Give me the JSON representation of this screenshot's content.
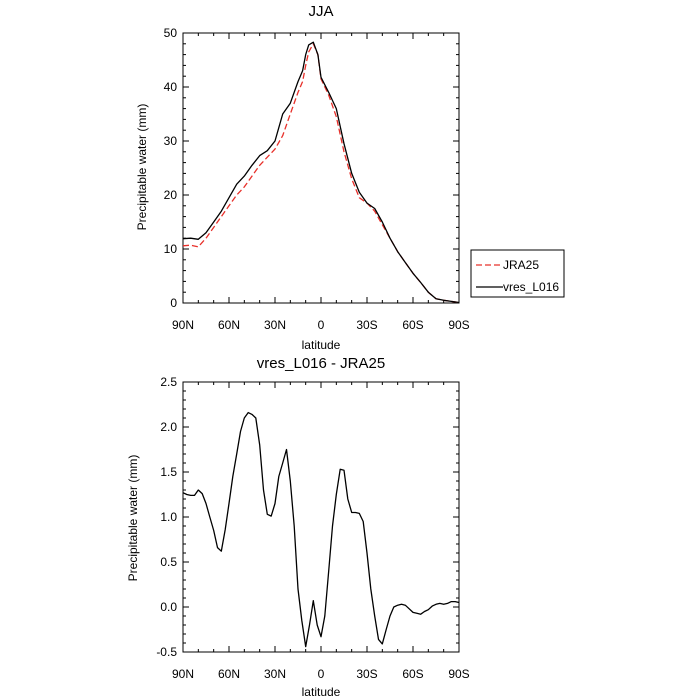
{
  "chart_data": [
    {
      "type": "line",
      "title": "JJA",
      "xlabel": "latitude",
      "ylabel": "Precipitable water (mm)",
      "xlim": [
        90,
        -90
      ],
      "ylim": [
        0,
        50
      ],
      "xticks": [
        {
          "value": 90,
          "label": "90N"
        },
        {
          "value": 60,
          "label": "60N"
        },
        {
          "value": 30,
          "label": "30N"
        },
        {
          "value": 0,
          "label": "0"
        },
        {
          "value": -30,
          "label": "30S"
        },
        {
          "value": -60,
          "label": "60S"
        },
        {
          "value": -90,
          "label": "90S"
        }
      ],
      "yticks": [
        0,
        10,
        20,
        30,
        40,
        50
      ],
      "legend": "right",
      "series": [
        {
          "name": "JRA25",
          "color": "#e8302a",
          "dash": "dashed",
          "x": [
            90,
            85,
            80,
            75,
            70,
            65,
            60,
            55,
            50,
            45,
            40,
            35,
            30,
            25,
            20,
            15,
            12,
            10,
            8,
            5,
            2,
            0,
            -5,
            -10,
            -15,
            -20,
            -25,
            -30,
            -35,
            -40,
            -45,
            -50,
            -55,
            -60,
            -65,
            -70,
            -75,
            -80,
            -85,
            -90
          ],
          "y": [
            10.6,
            10.7,
            10.4,
            12.0,
            14.0,
            16.0,
            18.0,
            20.0,
            21.5,
            23.5,
            25.5,
            27.0,
            28.5,
            31.0,
            35.0,
            39.0,
            41.0,
            44.0,
            46.5,
            48.0,
            46.0,
            41.5,
            38.5,
            34.5,
            28.0,
            23.0,
            19.5,
            18.5,
            17.0,
            14.5,
            12.0,
            9.5,
            7.5,
            5.5,
            3.8,
            2.0,
            0.8,
            0.5,
            0.3,
            0.1
          ]
        },
        {
          "name": "vres_L016",
          "color": "#000000",
          "dash": "solid",
          "x": [
            90,
            85,
            80,
            75,
            70,
            65,
            60,
            55,
            50,
            45,
            40,
            35,
            30,
            25,
            20,
            15,
            12,
            10,
            8,
            5,
            2,
            0,
            -5,
            -10,
            -15,
            -20,
            -25,
            -30,
            -35,
            -40,
            -45,
            -50,
            -55,
            -60,
            -65,
            -70,
            -75,
            -80,
            -85,
            -90
          ],
          "y": [
            11.9,
            12.0,
            11.8,
            13.0,
            15.0,
            17.0,
            19.5,
            22.0,
            23.5,
            25.5,
            27.3,
            28.2,
            30.0,
            35.0,
            37.0,
            41.0,
            43.0,
            46.0,
            47.8,
            48.3,
            46.0,
            41.8,
            39.0,
            36.0,
            29.5,
            24.0,
            20.5,
            18.5,
            17.5,
            15.0,
            12.0,
            9.5,
            7.5,
            5.5,
            3.8,
            2.0,
            0.8,
            0.5,
            0.3,
            0.1
          ]
        }
      ]
    },
    {
      "type": "line",
      "title": "vres_L016 - JRA25",
      "xlabel": "latitude",
      "ylabel": "Precipitable water (mm)",
      "xlim": [
        90,
        -90
      ],
      "ylim": [
        -0.5,
        2.5
      ],
      "xticks": [
        {
          "value": 90,
          "label": "90N"
        },
        {
          "value": 60,
          "label": "60N"
        },
        {
          "value": 30,
          "label": "30N"
        },
        {
          "value": 0,
          "label": "0"
        },
        {
          "value": -30,
          "label": "30S"
        },
        {
          "value": -60,
          "label": "60S"
        },
        {
          "value": -90,
          "label": "90S"
        }
      ],
      "yticks": [
        -0.5,
        0.0,
        0.5,
        1.0,
        1.5,
        2.0,
        2.5
      ],
      "yticklabels": [
        "-0.5",
        "0.0",
        "0.5",
        "1.0",
        "1.5",
        "2.0",
        "2.5"
      ],
      "series": [
        {
          "name": "",
          "color": "#000000",
          "dash": "solid",
          "x": [
            90,
            87.5,
            85,
            82.5,
            80,
            77.5,
            75,
            72.5,
            70,
            67.5,
            65,
            62.5,
            60,
            57.5,
            55,
            52.5,
            50,
            47.5,
            45,
            42.5,
            40,
            37.5,
            35,
            32.5,
            30,
            27.5,
            25,
            22.5,
            20,
            17.5,
            15,
            12.5,
            10,
            7.5,
            5,
            2.5,
            0,
            -2.5,
            -5,
            -7.5,
            -10,
            -12.5,
            -15,
            -17.5,
            -20,
            -22.5,
            -25,
            -27.5,
            -30,
            -32.5,
            -35,
            -37.5,
            -40,
            -42.5,
            -45,
            -47.5,
            -50,
            -52.5,
            -55,
            -57.5,
            -60,
            -62.5,
            -65,
            -67.5,
            -70,
            -72.5,
            -75,
            -77.5,
            -80,
            -82.5,
            -85,
            -87.5,
            -90
          ],
          "y": [
            1.27,
            1.25,
            1.24,
            1.24,
            1.3,
            1.26,
            1.15,
            1.0,
            0.85,
            0.66,
            0.62,
            0.86,
            1.15,
            1.45,
            1.7,
            1.95,
            2.1,
            2.16,
            2.14,
            2.1,
            1.8,
            1.3,
            1.03,
            1.01,
            1.15,
            1.45,
            1.6,
            1.75,
            1.4,
            0.9,
            0.2,
            -0.15,
            -0.44,
            -0.2,
            0.07,
            -0.2,
            -0.33,
            -0.1,
            0.4,
            0.9,
            1.25,
            1.53,
            1.52,
            1.2,
            1.05,
            1.05,
            1.04,
            0.95,
            0.6,
            0.2,
            -0.1,
            -0.36,
            -0.41,
            -0.25,
            -0.1,
            0.0,
            0.02,
            0.03,
            0.02,
            -0.02,
            -0.06,
            -0.07,
            -0.08,
            -0.05,
            -0.03,
            0.01,
            0.03,
            0.04,
            0.03,
            0.04,
            0.06,
            0.06,
            0.05
          ]
        }
      ]
    }
  ]
}
